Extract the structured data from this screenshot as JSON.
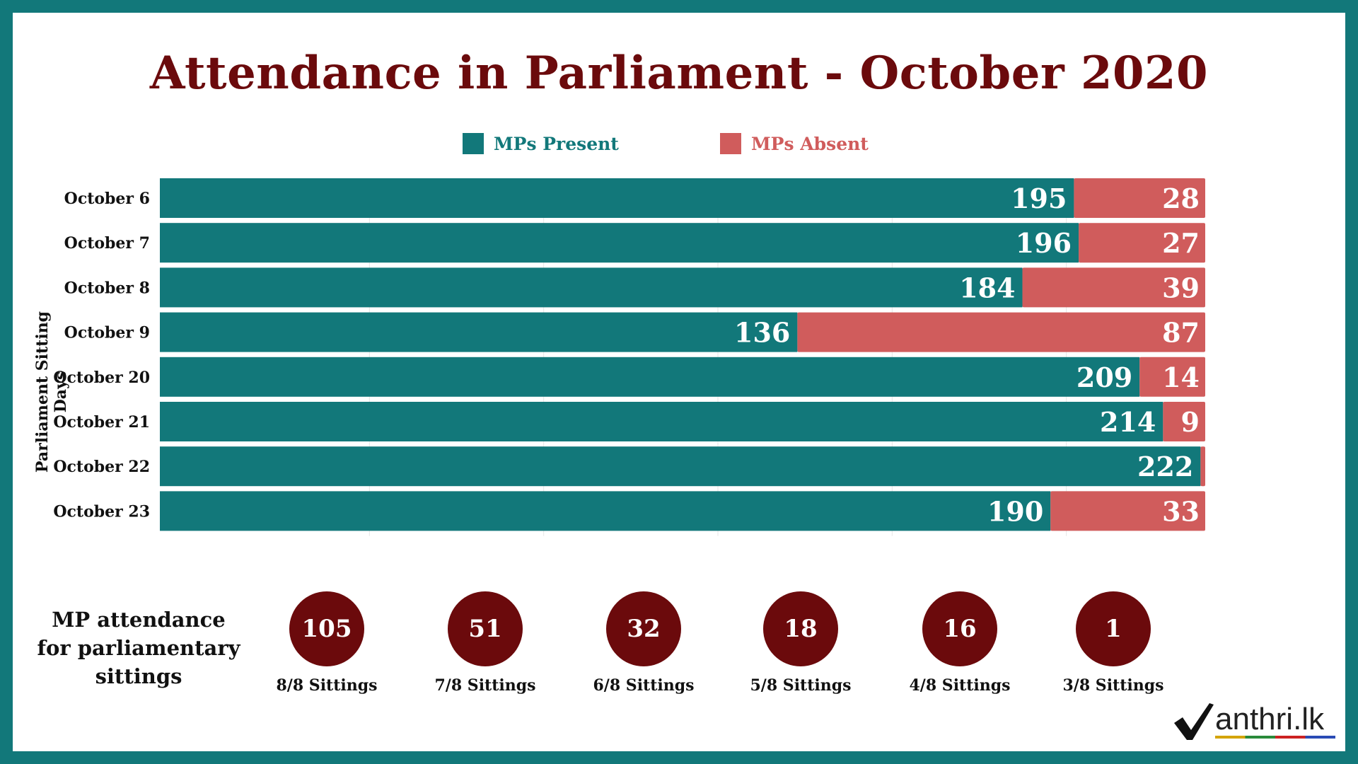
{
  "title": "Attendance in Parliament - October 2020",
  "legend": {
    "present": "MPs Present",
    "absent": "MPs Absent"
  },
  "colors": {
    "present": "#12787a",
    "absent": "#d05c5c",
    "title": "#6b0a0c",
    "circle": "#6b0a0c"
  },
  "chart_data": {
    "type": "bar",
    "orientation": "horizontal",
    "stacked": true,
    "ylabel": "Parliament  Sitting  Days",
    "categories": [
      "October 6",
      "October 7",
      "October 8",
      "October 9",
      "October 20",
      "October 21",
      "October 22",
      "October 23"
    ],
    "series": [
      {
        "name": "MPs Present",
        "values": [
          195,
          196,
          184,
          136,
          209,
          214,
          222,
          190
        ]
      },
      {
        "name": "MPs Absent",
        "values": [
          28,
          27,
          39,
          87,
          14,
          9,
          1,
          33
        ]
      }
    ],
    "xlim": [
      0,
      223
    ],
    "legend_position": "top",
    "grid": true
  },
  "stats": {
    "label": "MP attendance for parliamentary sittings",
    "items": [
      {
        "count": "105",
        "caption": "8/8 Sittings"
      },
      {
        "count": "51",
        "caption": "7/8 Sittings"
      },
      {
        "count": "32",
        "caption": "6/8 Sittings"
      },
      {
        "count": "18",
        "caption": "5/8 Sittings"
      },
      {
        "count": "16",
        "caption": "4/8 Sittings"
      },
      {
        "count": "1",
        "caption": "3/8 Sittings"
      }
    ]
  },
  "logo": {
    "text": "anthri.lk"
  }
}
